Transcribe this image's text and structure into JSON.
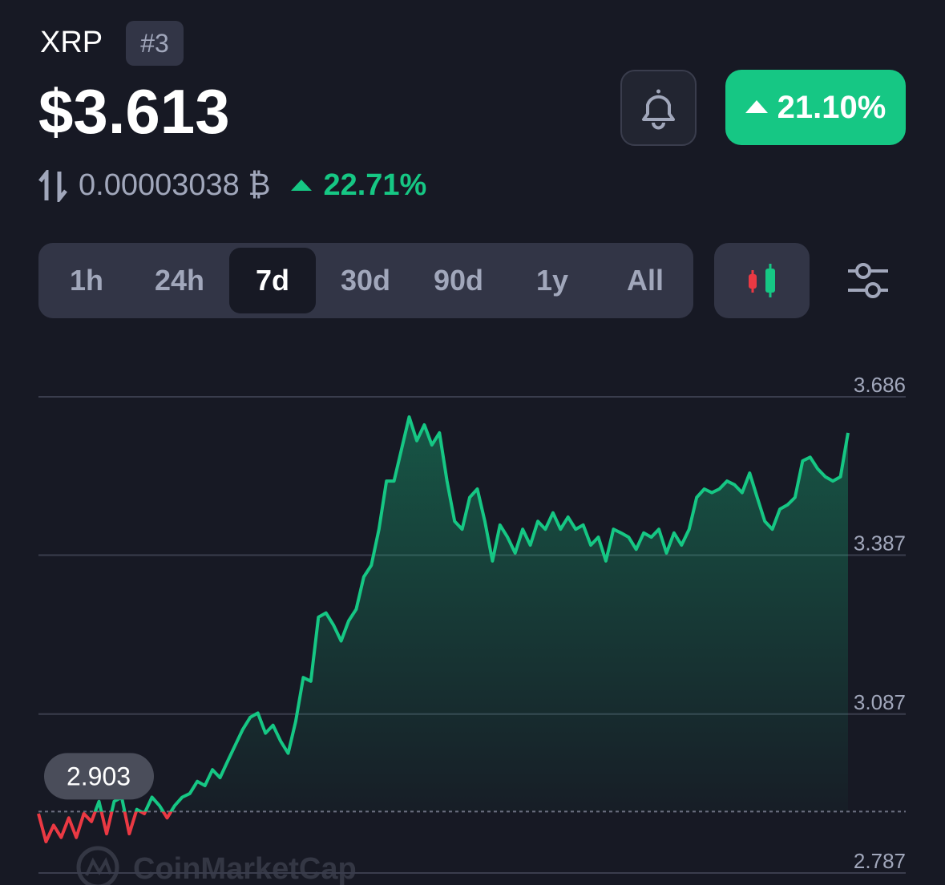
{
  "header": {
    "name": "XRP",
    "rank": "#3",
    "price": "$3.613",
    "change": "21.10%",
    "btc_price": "0.00003038 ₿",
    "btc_change": "22.71%"
  },
  "timeframes": {
    "options": [
      "1h",
      "24h",
      "7d",
      "30d",
      "90d",
      "1y",
      "All"
    ],
    "selected": 2
  },
  "watermark": "CoinMarketCap",
  "chart_data": {
    "type": "line",
    "values": [
      2.899,
      2.846,
      2.877,
      2.854,
      2.891,
      2.854,
      2.899,
      2.884,
      2.922,
      2.861,
      2.922,
      2.93,
      2.861,
      2.907,
      2.899,
      2.93,
      2.914,
      2.891,
      2.914,
      2.93,
      2.937,
      2.96,
      2.952,
      2.982,
      2.967,
      2.998,
      3.028,
      3.058,
      3.081,
      3.089,
      3.051,
      3.066,
      3.036,
      3.013,
      3.073,
      3.156,
      3.149,
      3.27,
      3.278,
      3.255,
      3.225,
      3.263,
      3.285,
      3.346,
      3.368,
      3.436,
      3.527,
      3.527,
      3.588,
      3.648,
      3.603,
      3.633,
      3.595,
      3.618,
      3.527,
      3.451,
      3.436,
      3.496,
      3.512,
      3.451,
      3.376,
      3.444,
      3.421,
      3.391,
      3.436,
      3.406,
      3.451,
      3.436,
      3.467,
      3.436,
      3.459,
      3.436,
      3.444,
      3.406,
      3.421,
      3.376,
      3.436,
      3.429,
      3.421,
      3.398,
      3.429,
      3.421,
      3.436,
      3.391,
      3.429,
      3.406,
      3.436,
      3.496,
      3.512,
      3.505,
      3.512,
      3.527,
      3.52,
      3.505,
      3.542,
      3.496,
      3.451,
      3.436,
      3.474,
      3.482,
      3.496,
      3.565,
      3.572,
      3.55,
      3.535,
      3.527,
      3.535,
      3.618
    ],
    "baseline": 2.903,
    "up_color": "#16c784",
    "down_color": "#ea3943",
    "ylim": [
      2.787,
      3.686
    ],
    "yticks": [
      3.686,
      3.387,
      3.087,
      2.787
    ],
    "grid": true
  }
}
